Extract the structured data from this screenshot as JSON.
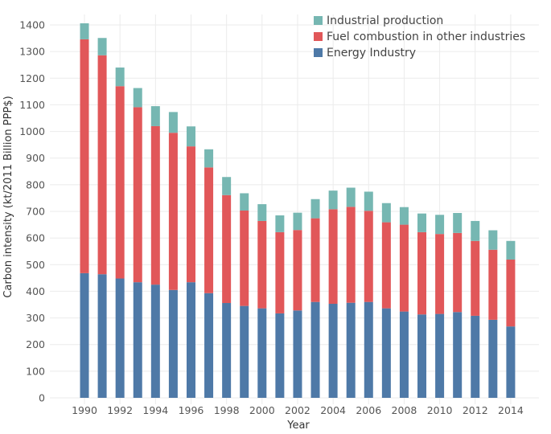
{
  "chart_data": {
    "type": "bar",
    "stacked": true,
    "title": "",
    "xlabel": "Year",
    "ylabel": "Carbon intensity (kt/2011 Billion PPP$)",
    "ylim": [
      0,
      1400
    ],
    "yticks": [
      0,
      100,
      200,
      300,
      400,
      500,
      600,
      700,
      800,
      900,
      1000,
      1100,
      1200,
      1300,
      1400
    ],
    "xtick_labels": [
      "1990",
      "1992",
      "1994",
      "1996",
      "1998",
      "2000",
      "2002",
      "2004",
      "2006",
      "2008",
      "2010",
      "2012",
      "2014"
    ],
    "grid": true,
    "legend_position": "top-right",
    "categories": [
      "1990",
      "1991",
      "1992",
      "1993",
      "1994",
      "1995",
      "1996",
      "1997",
      "1998",
      "1999",
      "2000",
      "2001",
      "2002",
      "2003",
      "2004",
      "2005",
      "2006",
      "2007",
      "2008",
      "2009",
      "2010",
      "2011",
      "2012",
      "2013",
      "2014"
    ],
    "series": [
      {
        "name": "Energy Industry",
        "color": "#4e79a7",
        "values": [
          468,
          464,
          448,
          434,
          425,
          405,
          434,
          393,
          356,
          345,
          336,
          317,
          328,
          360,
          353,
          357,
          360,
          336,
          324,
          313,
          315,
          322,
          308,
          293,
          268
        ]
      },
      {
        "name": "Fuel combustion in other industries",
        "color": "#e15759",
        "values": [
          878,
          822,
          722,
          657,
          595,
          590,
          510,
          472,
          405,
          358,
          328,
          305,
          302,
          314,
          355,
          360,
          342,
          323,
          326,
          309,
          300,
          297,
          281,
          263,
          251
        ]
      },
      {
        "name": "Industrial production",
        "color": "#76b7b2",
        "values": [
          60,
          65,
          70,
          72,
          75,
          78,
          75,
          68,
          68,
          65,
          63,
          63,
          65,
          72,
          70,
          72,
          72,
          72,
          66,
          70,
          72,
          75,
          75,
          73,
          70
        ]
      }
    ],
    "legend": [
      "Industrial production",
      "Fuel combustion in other industries",
      "Energy Industry"
    ]
  }
}
